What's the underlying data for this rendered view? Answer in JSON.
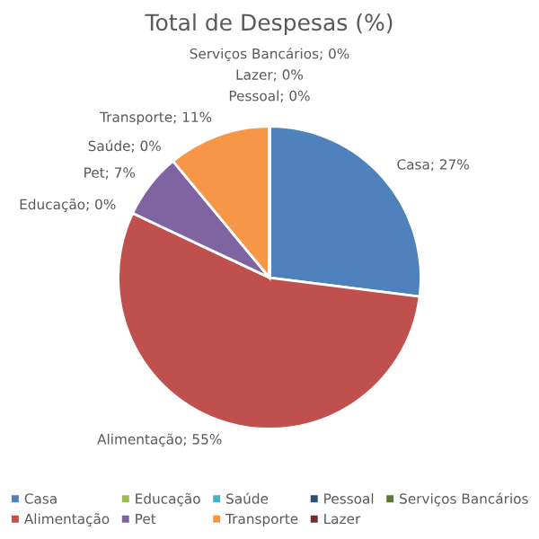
{
  "chart_data": {
    "type": "pie",
    "title": "Total de Despesas (%)",
    "categories": [
      "Casa",
      "Alimentação",
      "Educação",
      "Pet",
      "Saúde",
      "Transporte",
      "Pessoal",
      "Lazer",
      "Serviços Bancários"
    ],
    "values": [
      27,
      55,
      0,
      7,
      0,
      11,
      0,
      0,
      0
    ],
    "colors": [
      "#4f81bd",
      "#c0504d",
      "#9bbb59",
      "#8064a2",
      "#4bacc6",
      "#f79646",
      "#2c4d75",
      "#772c2a",
      "#5f7530"
    ],
    "value_labels": [
      "Casa; 27%",
      "Alimentação; 55%",
      "Educação; 0%",
      "Pet; 7%",
      "Saúde; 0%",
      "Transporte; 11%",
      "Pessoal; 0%",
      "Lazer; 0%",
      "Serviços Bancários; 0%"
    ],
    "legend": "bottom"
  }
}
